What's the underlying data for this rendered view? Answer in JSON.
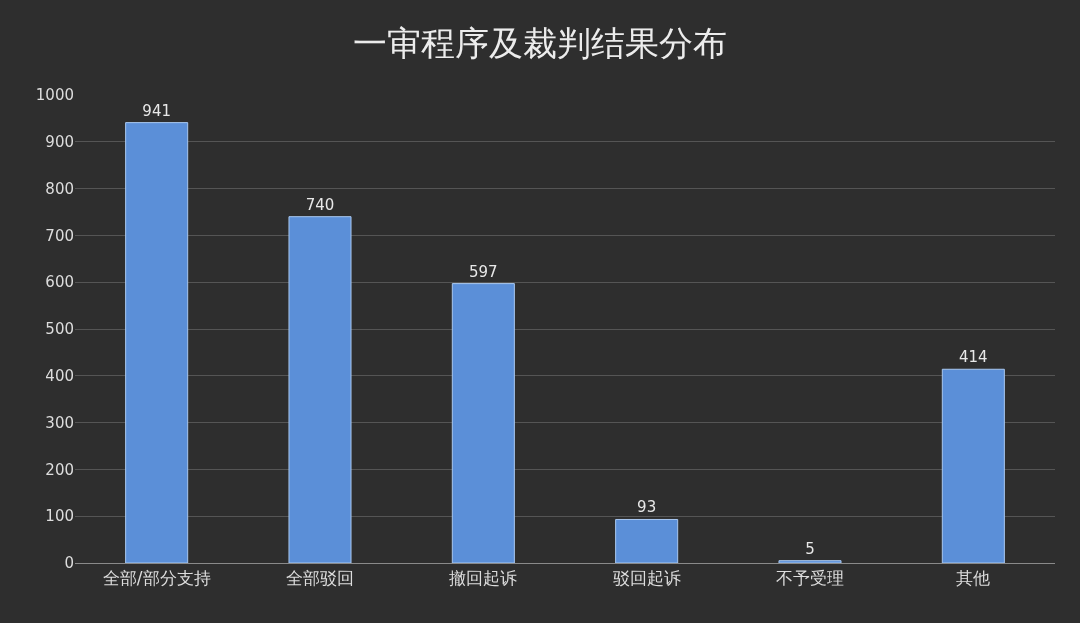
{
  "chart_data": {
    "type": "bar",
    "title": "一审程序及裁判结果分布",
    "categories": [
      "全部/部分支持",
      "全部驳回",
      "撤回起诉",
      "驳回起诉",
      "不予受理",
      "其他"
    ],
    "values": [
      941,
      740,
      597,
      93,
      5,
      414
    ],
    "color": "#5b8fd8",
    "ylim": [
      0,
      1000
    ],
    "yticks": [
      0,
      100,
      200,
      300,
      400,
      500,
      600,
      700,
      800,
      900,
      1000
    ],
    "grid": "y",
    "data_labels": true
  }
}
